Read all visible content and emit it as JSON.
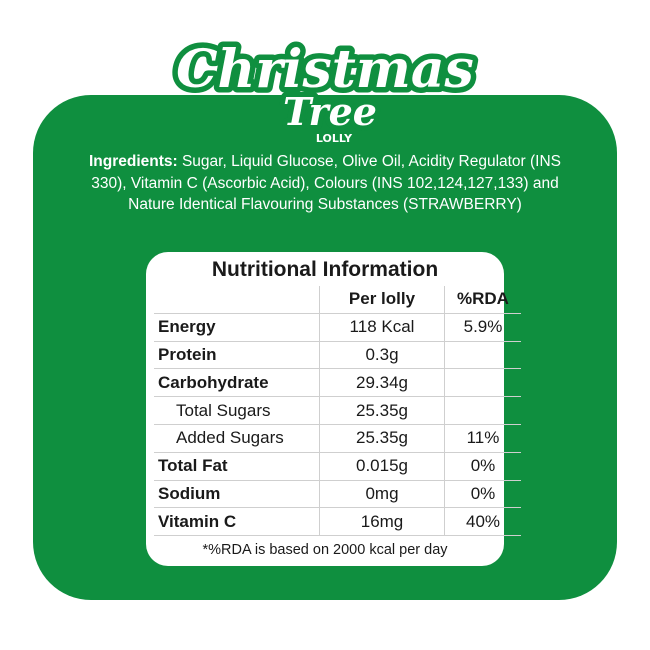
{
  "logo": {
    "line1": "Christmas",
    "line2": "Tree",
    "line3": "LOLLY"
  },
  "ingredients": {
    "label": "Ingredients:",
    "text": " Sugar, Liquid Glucose, Olive Oil, Acidity Regulator (INS 330), Vitamin C (Ascorbic Acid), Colours (INS 102,124,127,133) and Nature Identical Flavouring Substances (STRAWBERRY)"
  },
  "nutrition": {
    "title": "Nutritional Information",
    "headers": [
      "",
      "Per lolly",
      "%RDA"
    ],
    "rows": [
      {
        "name": "Energy",
        "per": "118 Kcal",
        "rda": "5.9%"
      },
      {
        "name": "Protein",
        "per": "0.3g",
        "rda": ""
      },
      {
        "name": "Carbohydrate",
        "per": "29.34g",
        "rda": ""
      },
      {
        "name": "Total Sugars",
        "per": "25.35g",
        "rda": ""
      },
      {
        "name": "Added Sugars",
        "per": "25.35g",
        "rda": "11%"
      },
      {
        "name": "Total Fat",
        "per": "0.015g",
        "rda": "0%"
      },
      {
        "name": "Sodium",
        "per": "0mg",
        "rda": "0%"
      },
      {
        "name": "Vitamin C",
        "per": "16mg",
        "rda": "40%"
      }
    ],
    "footnote": "*%RDA is based on 2000 kcal per day"
  },
  "colors": {
    "brand_green": "#0f8f3f",
    "white": "#ffffff"
  }
}
